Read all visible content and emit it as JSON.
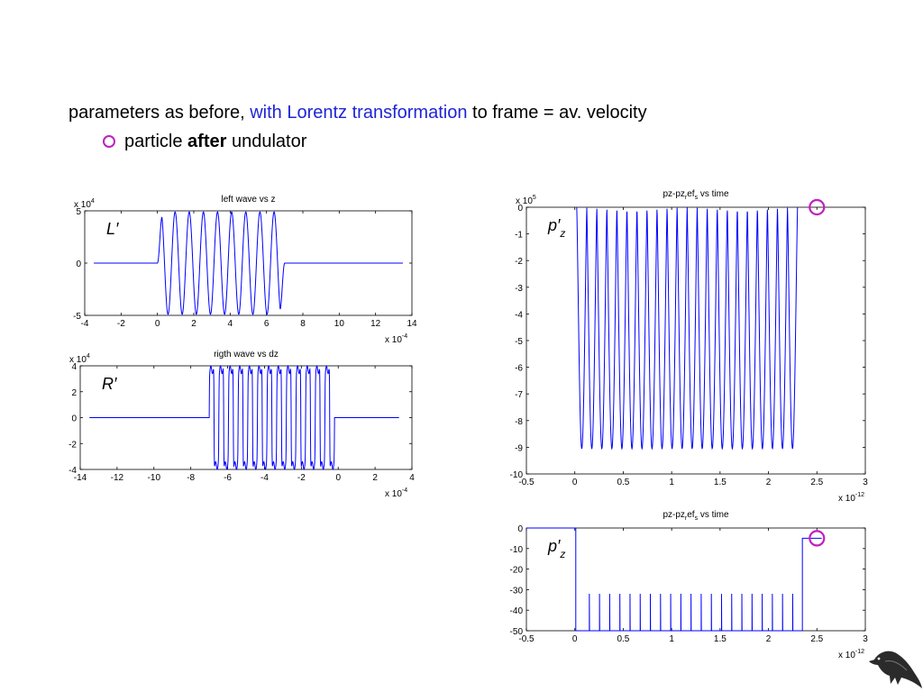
{
  "heading": {
    "part1": "parameters as before,",
    "accent": "with Lorentz transformation",
    "part2": "to frame = av. velocity",
    "accent_color": "#1f24d6"
  },
  "bullet": {
    "icon": "circle-outline-icon",
    "color": "#c01fc0",
    "text1": "particle",
    "bold": "after",
    "text2": "undulator"
  },
  "chart_data": [
    {
      "id": "left",
      "type": "line",
      "title": "left wave vs z",
      "label": "L′",
      "exp_y": "4",
      "exp_x": "-4",
      "xlim": [
        -4,
        14
      ],
      "ylim": [
        -5,
        5
      ],
      "xticks": [
        -4,
        -2,
        0,
        2,
        4,
        6,
        8,
        10,
        12,
        14
      ],
      "yticks": [
        5,
        0,
        -5
      ],
      "series": [
        {
          "color": "#0000ff",
          "description_points": [
            [
              -3.5,
              0
            ],
            [
              0,
              0
            ],
            [
              0.05,
              1.0
            ],
            [
              6.95,
              0.0
            ],
            [
              7.0,
              0.3
            ],
            [
              13.5,
              0
            ]
          ],
          "oscillation": {
            "start": 0,
            "end": 7,
            "periods": 9,
            "amplitude": 4.9,
            "flat_value": 0
          }
        }
      ]
    },
    {
      "id": "right",
      "type": "line",
      "title": "rigth wave vs dz",
      "label": "R′",
      "exp_y": "4",
      "exp_x": "-4",
      "xlim": [
        -14,
        4
      ],
      "ylim": [
        -4,
        4
      ],
      "xticks": [
        -14,
        -12,
        -10,
        -8,
        -6,
        -4,
        -2,
        0,
        2,
        4
      ],
      "yticks": [
        4,
        2,
        0,
        -2,
        -4
      ],
      "series": [
        {
          "color": "#0000ff",
          "oscillation": {
            "start": -7,
            "end": -0.2,
            "periods": 13,
            "amplitude": 3.7,
            "ripple": 0.6,
            "flat_value": 0,
            "pre": -13.5,
            "post": 3.3
          }
        }
      ]
    },
    {
      "id": "pz-top",
      "type": "line",
      "title_parts": [
        "pz-pz",
        "r",
        "ef",
        "s",
        " vs time"
      ],
      "label": "p′z",
      "exp_y": "5",
      "exp_x": "-12",
      "xlim": [
        -0.5,
        3
      ],
      "ylim": [
        -10,
        0
      ],
      "xticks": [
        -0.5,
        0,
        0.5,
        1,
        1.5,
        2,
        2.5,
        3
      ],
      "yticks": [
        0,
        -1,
        -2,
        -3,
        -4,
        -5,
        -6,
        -7,
        -8,
        -9,
        -10
      ],
      "marker_circle": {
        "x": 2.5,
        "y": 0,
        "color": "#c01fc0"
      },
      "series": [
        {
          "color": "#0000ff",
          "oscillation": {
            "start": 0.02,
            "end": 2.3,
            "periods": 22,
            "min": -9.05,
            "max": 0
          }
        }
      ]
    },
    {
      "id": "pz-bottom",
      "type": "line",
      "title_parts": [
        "pz-pz",
        "r",
        "ef",
        "s",
        " vs time"
      ],
      "label": "p′z",
      "exp_x": "-12",
      "xlim": [
        -0.5,
        3
      ],
      "ylim": [
        -50,
        0
      ],
      "xticks": [
        -0.5,
        0,
        0.5,
        1,
        1.5,
        2,
        2.5,
        3
      ],
      "yticks": [
        0,
        -10,
        -20,
        -30,
        -40,
        -50
      ],
      "marker_circle": {
        "x": 2.5,
        "y": -5,
        "color": "#c01fc0"
      },
      "series": [
        {
          "color": "#0000ff",
          "steps": {
            "start_level": 0,
            "drop_at": 0.01,
            "base": -50,
            "spike_level": -32,
            "spike_start": 0.15,
            "spike_end": 2.25,
            "spike_count": 21,
            "rise_at": 2.35,
            "end_level": -5,
            "end": 2.55
          }
        }
      ]
    }
  ]
}
